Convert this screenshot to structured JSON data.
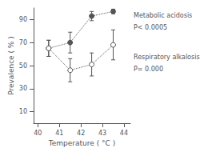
{
  "chart_data": {
    "type": "line",
    "xlabel": "Temperature ( °C )",
    "ylabel": "Prevalence ( % )",
    "x": [
      40.5,
      41.5,
      42.5,
      43.5
    ],
    "series": [
      {
        "color": "#555555",
        "marker": "circle",
        "line_style": "dotted",
        "values": [
          65,
          70,
          93,
          97
        ],
        "yerr_low": [
          7,
          9,
          4,
          2
        ],
        "yerr_high": [
          7,
          9,
          4,
          2
        ]
      },
      {
        "color": "#555555",
        "marker": "open_circle",
        "line_style": "dotted",
        "values": [
          65,
          46,
          51,
          68
        ],
        "yerr_low": [
          7,
          10,
          10,
          13
        ],
        "yerr_high": [
          7,
          10,
          10,
          13
        ]
      }
    ],
    "annotations": [
      "Metabolic acidosis",
      "P< 0.0005",
      "Respiratory alkalosis",
      "P= 0.000"
    ],
    "xlim": [
      39.8,
      44.3
    ],
    "ylim": [
      0,
      100
    ],
    "xticks": [
      40,
      41,
      42,
      43,
      44
    ],
    "yticks": [
      10,
      30,
      50,
      70,
      90
    ],
    "grid": false
  }
}
